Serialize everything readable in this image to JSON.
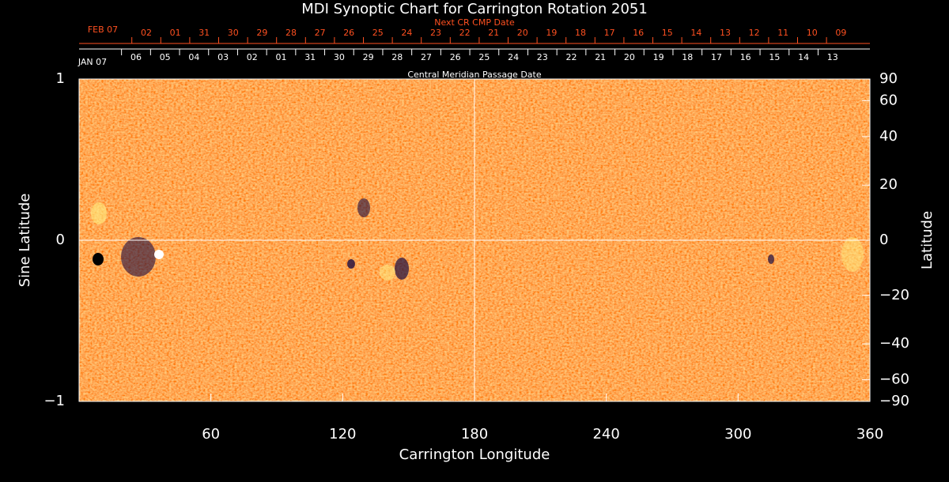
{
  "chart_data": {
    "type": "synoptic-map",
    "title": "MDI Synoptic Chart for Carrington Rotation 2051",
    "xlabel": "Carrington Longitude",
    "ylabel": "Sine Latitude",
    "y2label": "Latitude",
    "xlim": [
      0,
      360
    ],
    "xticks": [
      60,
      120,
      180,
      240,
      300,
      360
    ],
    "ylim": [
      -1,
      1
    ],
    "yticks": [
      {
        "value": -1,
        "label": "−1"
      },
      0,
      1
    ],
    "y2lim": [
      -90,
      90
    ],
    "y2scale": "sine",
    "y2ticks": [
      {
        "value": -90,
        "label": "−90"
      },
      {
        "value": -60,
        "label": "−60"
      },
      {
        "value": -40,
        "label": "−40"
      },
      {
        "value": -20,
        "label": "−20"
      },
      0,
      20,
      40,
      60,
      90
    ],
    "date_axes": [
      {
        "title": "Next CR CMP Date",
        "color": "#ff5020",
        "labels": [
          "FEB 07",
          "02",
          "01",
          "31",
          "30",
          "29",
          "28",
          "27",
          "26",
          "25",
          "24",
          "23",
          "22",
          "21",
          "20",
          "19",
          "18",
          "17",
          "16",
          "15",
          "14",
          "13",
          "12",
          "11",
          "10",
          "09"
        ]
      },
      {
        "title": "Central Meridian Passage Date",
        "color": "#ffffff",
        "labels": [
          "JAN 07",
          "06",
          "05",
          "04",
          "03",
          "02",
          "01",
          "31",
          "30",
          "29",
          "28",
          "27",
          "26",
          "25",
          "24",
          "23",
          "22",
          "21",
          "20",
          "19",
          "18",
          "17",
          "16",
          "15",
          "14",
          "13"
        ]
      }
    ]
  }
}
